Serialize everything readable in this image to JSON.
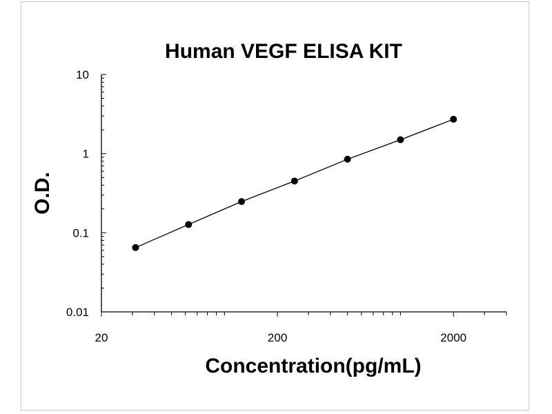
{
  "chart_data": {
    "type": "scatter",
    "title": "Human VEGF ELISA KIT",
    "xlabel": "Concentration(pg/mL)",
    "ylabel": "O.D.",
    "x_scale": "log",
    "y_scale": "log",
    "xlim": [
      20,
      4000
    ],
    "ylim": [
      0.01,
      10
    ],
    "x_ticks": [
      {
        "value": 20,
        "label": "20"
      },
      {
        "value": 200,
        "label": "200"
      },
      {
        "value": 2000,
        "label": "2000"
      }
    ],
    "y_ticks": [
      {
        "value": 0.01,
        "label": "0.01"
      },
      {
        "value": 0.1,
        "label": "0.1"
      },
      {
        "value": 1,
        "label": "1"
      },
      {
        "value": 10,
        "label": "10"
      }
    ],
    "grid": false,
    "series": [
      {
        "x": [
          31.25,
          62.5,
          125,
          250,
          500,
          1000,
          2000
        ],
        "y": [
          0.065,
          0.127,
          0.248,
          0.45,
          0.85,
          1.5,
          2.72
        ],
        "line": true,
        "color": "#000000"
      }
    ]
  }
}
